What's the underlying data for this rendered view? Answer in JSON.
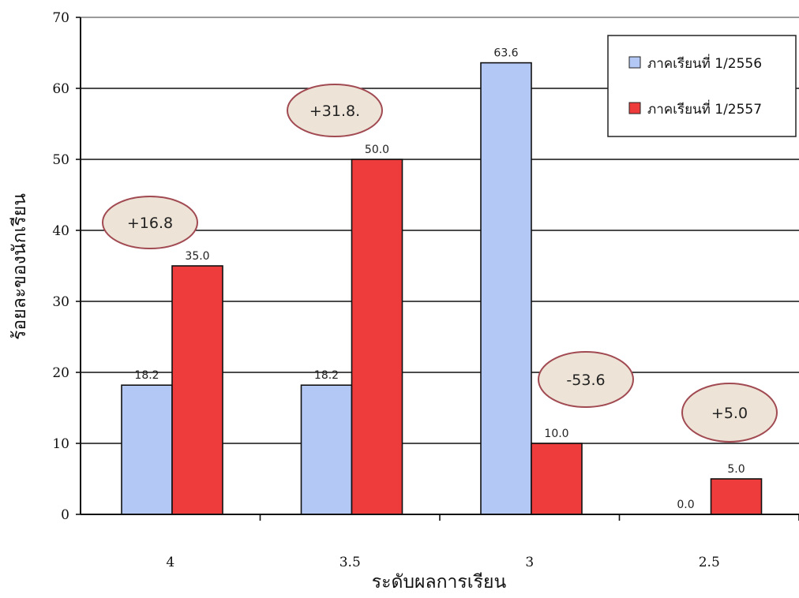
{
  "chart_data": {
    "type": "bar",
    "xlabel": "ระดับผลการเรียน",
    "ylabel": "ร้อยละของนักเรียน",
    "categories": [
      "4",
      "3.5",
      "3",
      "2.5"
    ],
    "ylim": [
      0,
      70
    ],
    "yticks": [
      0,
      10,
      20,
      30,
      40,
      50,
      60,
      70
    ],
    "grid": "horizontal",
    "legend_position": "top-right",
    "series": [
      {
        "name": "ภาคเรียนที่ 1/2556",
        "color": "#b3c8f5",
        "values": [
          18.2,
          18.2,
          63.6,
          0.0
        ],
        "value_labels": [
          "18.2",
          "18.2",
          "63.6",
          "0.0"
        ]
      },
      {
        "name": "ภาคเรียนที่ 1/2557",
        "color": "#ee3c3c",
        "values": [
          35.0,
          50.0,
          10.0,
          5.0
        ],
        "value_labels": [
          "35.0",
          "50.0",
          "10.0",
          "5.0"
        ]
      }
    ],
    "annotations": [
      {
        "text": "+16.8",
        "category": "4"
      },
      {
        "text": "+31.8.",
        "category": "3.5"
      },
      {
        "text": "-53.6",
        "category": "3"
      },
      {
        "text": "+5.0",
        "category": "2.5"
      }
    ],
    "annotation_style": {
      "fill": "#ede3d6",
      "stroke": "#a14a52"
    }
  }
}
